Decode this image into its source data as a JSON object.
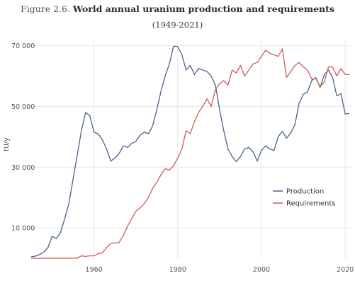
{
  "figure": {
    "title_prefix": "Figure 2.6.",
    "title": "World annual uranium production and requirements",
    "subtitle": "(1949-2021)"
  },
  "chart_data": {
    "type": "line",
    "ylabel": "tU/y",
    "xlabel": "",
    "xlim": [
      1945,
      2021.5
    ],
    "ylim": [
      0,
      72000
    ],
    "x_ticks": [
      1960,
      1980,
      2000,
      2020
    ],
    "y_ticks": [
      10000,
      30000,
      50000,
      70000
    ],
    "y_tick_labels": [
      "10 000",
      "30 000",
      "50 000",
      "70 000"
    ],
    "grid": true,
    "legend_position": "right",
    "series": [
      {
        "name": "Production",
        "color": "#4a6187",
        "x": [
          1945,
          1946,
          1947,
          1948,
          1949,
          1950,
          1951,
          1952,
          1953,
          1954,
          1955,
          1956,
          1957,
          1958,
          1959,
          1960,
          1961,
          1962,
          1963,
          1964,
          1965,
          1966,
          1967,
          1968,
          1969,
          1970,
          1971,
          1972,
          1973,
          1974,
          1975,
          1976,
          1977,
          1978,
          1979,
          1980,
          1981,
          1982,
          1983,
          1984,
          1985,
          1986,
          1987,
          1988,
          1989,
          1990,
          1991,
          1992,
          1993,
          1994,
          1995,
          1996,
          1997,
          1998,
          1999,
          2000,
          2001,
          2002,
          2003,
          2004,
          2005,
          2006,
          2007,
          2008,
          2009,
          2010,
          2011,
          2012,
          2013,
          2014,
          2015,
          2016,
          2017,
          2018,
          2019,
          2020,
          2021
        ],
        "values": [
          500,
          700,
          1200,
          2000,
          3500,
          7200,
          6500,
          8500,
          13000,
          18000,
          26000,
          34000,
          42000,
          48000,
          47000,
          41500,
          41000,
          39000,
          36000,
          32000,
          33000,
          34500,
          37000,
          36500,
          37800,
          38500,
          40500,
          41500,
          41000,
          43500,
          49000,
          55000,
          60000,
          64000,
          69800,
          69700,
          67000,
          62000,
          63500,
          60500,
          62500,
          62000,
          61500,
          60000,
          57000,
          49000,
          42000,
          36000,
          33500,
          31800,
          33500,
          36000,
          36500,
          35000,
          32000,
          35500,
          37000,
          36000,
          35500,
          40000,
          41800,
          39500,
          41300,
          44000,
          51000,
          54000,
          54800,
          58500,
          59500,
          56200,
          60500,
          62000,
          59500,
          53500,
          54200,
          47500,
          47700
        ]
      },
      {
        "name": "Requirements",
        "color": "#c95f58",
        "x": [
          1945,
          1946,
          1947,
          1948,
          1949,
          1950,
          1951,
          1952,
          1953,
          1954,
          1955,
          1956,
          1957,
          1958,
          1959,
          1960,
          1961,
          1962,
          1963,
          1964,
          1965,
          1966,
          1967,
          1968,
          1969,
          1970,
          1971,
          1972,
          1973,
          1974,
          1975,
          1976,
          1977,
          1978,
          1979,
          1980,
          1981,
          1982,
          1983,
          1984,
          1985,
          1986,
          1987,
          1988,
          1989,
          1990,
          1991,
          1992,
          1993,
          1994,
          1995,
          1996,
          1997,
          1998,
          1999,
          2000,
          2001,
          2002,
          2003,
          2004,
          2005,
          2006,
          2007,
          2008,
          2009,
          2010,
          2011,
          2012,
          2013,
          2014,
          2015,
          2016,
          2017,
          2018,
          2019,
          2020,
          2021
        ],
        "values": [
          0,
          0,
          0,
          0,
          0,
          0,
          0,
          0,
          0,
          0,
          0,
          0,
          800,
          600,
          800,
          800,
          1500,
          1800,
          3500,
          4800,
          5000,
          5200,
          7500,
          10500,
          13000,
          15500,
          16500,
          18000,
          20000,
          23000,
          25000,
          27500,
          29500,
          29000,
          30500,
          33000,
          36000,
          42000,
          41000,
          45000,
          48000,
          50000,
          52500,
          50000,
          55500,
          57500,
          58500,
          57000,
          62000,
          61000,
          63500,
          60000,
          62000,
          64000,
          64500,
          66500,
          68500,
          67500,
          67000,
          66500,
          69000,
          59500,
          61500,
          63500,
          64500,
          63000,
          62000,
          59000,
          59200,
          56500,
          58000,
          63000,
          63000,
          60000,
          62500,
          60500,
          60500
        ]
      }
    ]
  }
}
